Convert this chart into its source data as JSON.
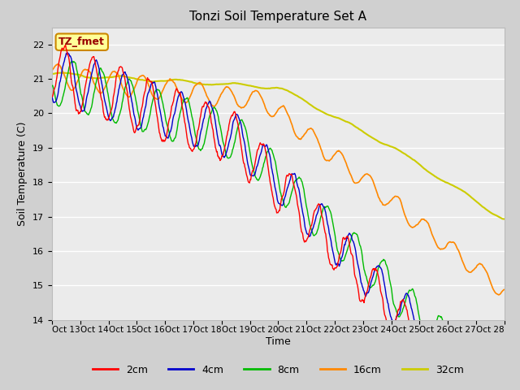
{
  "title": "Tonzi Soil Temperature Set A",
  "xlabel": "Time",
  "ylabel": "Soil Temperature (C)",
  "ylim": [
    14.0,
    22.5
  ],
  "colors": {
    "2cm": "#ff0000",
    "4cm": "#0000cc",
    "8cm": "#00bb00",
    "16cm": "#ff8800",
    "32cm": "#cccc00"
  },
  "plot_bg_color": "#ebebeb",
  "fig_bg_color": "#d0d0d0",
  "legend_label": "TZ_fmet",
  "legend_bg": "#ffff99",
  "legend_border": "#cc8800",
  "grid_color": "#ffffff",
  "x_tick_labels": [
    "Oct 13",
    "Oct 14",
    "Oct 15",
    "Oct 16",
    "Oct 17",
    "Oct 18",
    "Oct 19",
    "Oct 20",
    "Oct 21",
    "Oct 22",
    "Oct 23",
    "Oct 24",
    "Oct 25",
    "Oct 26",
    "Oct 27",
    "Oct 28"
  ],
  "yticks": [
    14.0,
    15.0,
    16.0,
    17.0,
    18.0,
    19.0,
    20.0,
    21.0,
    22.0
  ]
}
